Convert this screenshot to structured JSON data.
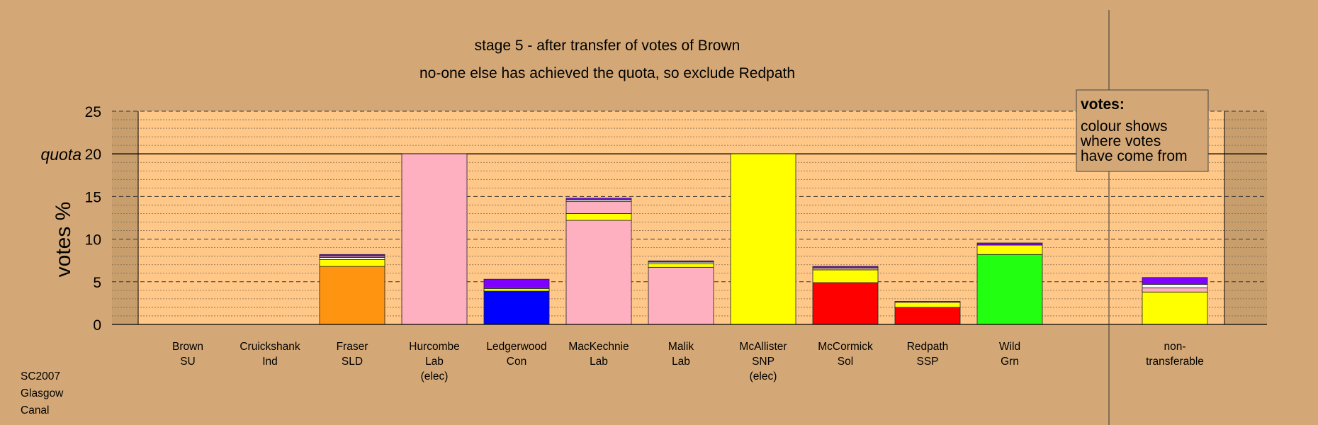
{
  "chart_data": {
    "type": "bar",
    "title": "stage 5 - after transfer of votes of Brown",
    "subtitle": "no-one else has achieved the quota, so exclude Redpath",
    "ylabel": "votes %",
    "ylim": [
      0,
      25
    ],
    "yticks": [
      "0",
      "5",
      "10",
      "15",
      "20",
      "25"
    ],
    "quota_label": "quota",
    "quota": 20,
    "legend": {
      "heading": "votes:",
      "lines": [
        "colour shows",
        "where votes",
        "have come from"
      ]
    },
    "colors": {
      "SU": "#8000ff",
      "Ind": "#f8f8f8",
      "SLD": "#ff9411",
      "Lab": "#ffb0c0",
      "Con": "#0000ff",
      "SNP": "#ffff00",
      "Sol": "#ff0000",
      "SSP": "#ff0000",
      "Grn": "#22ff11"
    },
    "categories": [
      {
        "name": "Brown",
        "party": "SU",
        "note": "",
        "segments": []
      },
      {
        "name": "Cruickshank",
        "party": "Ind",
        "note": "",
        "segments": []
      },
      {
        "name": "Fraser",
        "party": "SLD",
        "note": "",
        "segments": [
          {
            "from": "SLD",
            "value": 6.8
          },
          {
            "from": "SNP",
            "value": 0.8
          },
          {
            "from": "Ind",
            "value": 0.25
          },
          {
            "from": "Lab",
            "value": 0.15
          },
          {
            "from": "SU",
            "value": 0.2
          }
        ]
      },
      {
        "name": "Hurcombe",
        "party": "Lab",
        "note": "(elec)",
        "segments": [
          {
            "from": "Lab",
            "value": 20.0
          }
        ]
      },
      {
        "name": "Ledgerwood",
        "party": "Con",
        "note": "",
        "segments": [
          {
            "from": "Con",
            "value": 3.9
          },
          {
            "from": "SNP",
            "value": 0.3
          },
          {
            "from": "Ind",
            "value": 0.1
          },
          {
            "from": "SU",
            "value": 1.0
          }
        ]
      },
      {
        "name": "MacKechnie",
        "party": "Lab",
        "note": "",
        "segments": [
          {
            "from": "Lab",
            "value": 12.2
          },
          {
            "from": "SNP",
            "value": 0.8
          },
          {
            "from": "Lab",
            "value": 1.4
          },
          {
            "from": "Ind",
            "value": 0.2
          },
          {
            "from": "SU",
            "value": 0.2
          }
        ]
      },
      {
        "name": "Malik",
        "party": "Lab",
        "note": "",
        "segments": [
          {
            "from": "Lab",
            "value": 6.7
          },
          {
            "from": "SNP",
            "value": 0.4
          },
          {
            "from": "Ind",
            "value": 0.2
          },
          {
            "from": "SU",
            "value": 0.15
          }
        ]
      },
      {
        "name": "McAllister",
        "party": "SNP",
        "note": "(elec)",
        "segments": [
          {
            "from": "SNP",
            "value": 20.0
          }
        ]
      },
      {
        "name": "McCormick",
        "party": "Sol",
        "note": "",
        "segments": [
          {
            "from": "Sol",
            "value": 4.9
          },
          {
            "from": "SNP",
            "value": 1.5
          },
          {
            "from": "Lab",
            "value": 0.2
          },
          {
            "from": "Ind",
            "value": 0.1
          },
          {
            "from": "SU",
            "value": 0.1
          }
        ]
      },
      {
        "name": "Redpath",
        "party": "SSP",
        "note": "",
        "segments": [
          {
            "from": "SSP",
            "value": 2.0
          },
          {
            "from": "SNP",
            "value": 0.6
          },
          {
            "from": "SU",
            "value": 0.1
          }
        ]
      },
      {
        "name": "Wild",
        "party": "Grn",
        "note": "",
        "segments": [
          {
            "from": "Grn",
            "value": 8.2
          },
          {
            "from": "SNP",
            "value": 1.1
          },
          {
            "from": "SU",
            "value": 0.25
          }
        ]
      },
      {
        "name": "non-",
        "party": "transferable",
        "note": "",
        "segments": [
          {
            "from": "SNP",
            "value": 3.8
          },
          {
            "from": "Lab",
            "value": 0.5
          },
          {
            "from": "Ind",
            "value": 0.4
          },
          {
            "from": "SU",
            "value": 0.8
          }
        ]
      }
    ]
  },
  "footer": [
    "SC2007",
    "Glasgow",
    "Canal"
  ]
}
